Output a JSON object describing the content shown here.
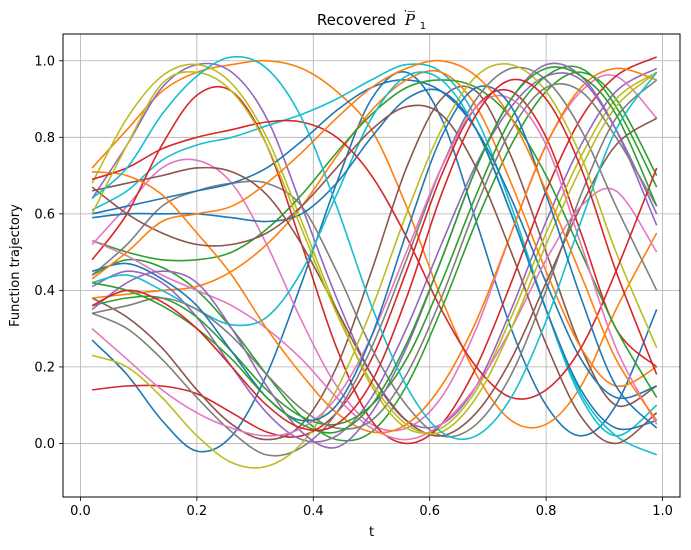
{
  "chart_data": {
    "type": "line",
    "title": "Recovered",
    "title_math": "P̅",
    "title_subscript": "1",
    "xlabel": "t",
    "ylabel": "Function trajectory",
    "xlim": [
      -0.03,
      1.03
    ],
    "ylim": [
      -0.14,
      1.07
    ],
    "x_ticks": [
      0.0,
      0.2,
      0.4,
      0.6,
      0.8,
      1.0
    ],
    "x_tick_labels": [
      "0.0",
      "0.2",
      "0.4",
      "0.6",
      "0.8",
      "1.0"
    ],
    "y_ticks": [
      0.0,
      0.2,
      0.4,
      0.6,
      0.8,
      1.0
    ],
    "y_tick_labels": [
      "0.0",
      "0.2",
      "0.4",
      "0.6",
      "0.8",
      "1.0"
    ],
    "grid": true,
    "x": [
      0.02,
      0.08,
      0.14,
      0.2,
      0.26,
      0.32,
      0.38,
      0.44,
      0.5,
      0.56,
      0.62,
      0.68,
      0.74,
      0.8,
      0.86,
      0.92,
      0.99
    ],
    "series": [
      {
        "color": "#1f77b4",
        "values": [
          0.27,
          0.18,
          0.06,
          -0.02,
          0.02,
          0.18,
          0.42,
          0.68,
          0.9,
          0.97,
          0.85,
          0.58,
          0.3,
          0.1,
          0.02,
          0.1,
          0.35
        ]
      },
      {
        "color": "#ff7f0e",
        "values": [
          0.72,
          0.82,
          0.92,
          0.97,
          0.99,
          1.0,
          0.98,
          0.92,
          0.82,
          0.62,
          0.38,
          0.18,
          0.06,
          0.05,
          0.15,
          0.35,
          0.55
        ]
      },
      {
        "color": "#2ca02c",
        "values": [
          0.44,
          0.48,
          0.46,
          0.4,
          0.3,
          0.18,
          0.07,
          0.01,
          0.03,
          0.15,
          0.35,
          0.58,
          0.78,
          0.92,
          0.97,
          0.9,
          0.7
        ]
      },
      {
        "color": "#d62728",
        "values": [
          0.14,
          0.15,
          0.15,
          0.13,
          0.08,
          0.03,
          0.02,
          0.08,
          0.22,
          0.45,
          0.7,
          0.88,
          0.92,
          0.8,
          0.55,
          0.3,
          0.2
        ]
      },
      {
        "color": "#9467bd",
        "values": [
          0.64,
          0.78,
          0.93,
          0.99,
          0.97,
          0.85,
          0.62,
          0.38,
          0.18,
          0.06,
          0.05,
          0.15,
          0.35,
          0.58,
          0.78,
          0.92,
          0.98
        ]
      },
      {
        "color": "#8c564b",
        "values": [
          0.38,
          0.33,
          0.25,
          0.14,
          0.05,
          0.01,
          0.05,
          0.2,
          0.45,
          0.72,
          0.9,
          0.92,
          0.75,
          0.5,
          0.25,
          0.1,
          0.15
        ]
      },
      {
        "color": "#e377c2",
        "values": [
          0.52,
          0.62,
          0.72,
          0.74,
          0.68,
          0.52,
          0.32,
          0.15,
          0.05,
          0.04,
          0.12,
          0.3,
          0.55,
          0.78,
          0.92,
          0.96,
          0.85
        ]
      },
      {
        "color": "#7f7f7f",
        "values": [
          0.44,
          0.52,
          0.62,
          0.66,
          0.68,
          0.68,
          0.62,
          0.45,
          0.25,
          0.1,
          0.02,
          0.05,
          0.18,
          0.4,
          0.65,
          0.85,
          0.95
        ]
      },
      {
        "color": "#bcbd22",
        "values": [
          0.68,
          0.85,
          0.96,
          0.99,
          0.94,
          0.8,
          0.58,
          0.35,
          0.15,
          0.04,
          0.04,
          0.14,
          0.33,
          0.55,
          0.75,
          0.9,
          0.97
        ]
      },
      {
        "color": "#17becf",
        "values": [
          0.61,
          0.66,
          0.74,
          0.78,
          0.8,
          0.83,
          0.86,
          0.9,
          0.95,
          0.99,
          0.97,
          0.85,
          0.62,
          0.35,
          0.12,
          0.02,
          0.1
        ]
      },
      {
        "color": "#1f77b4",
        "values": [
          0.6,
          0.62,
          0.64,
          0.66,
          0.68,
          0.72,
          0.79,
          0.87,
          0.93,
          0.95,
          0.92,
          0.82,
          0.64,
          0.42,
          0.22,
          0.12,
          0.15
        ]
      },
      {
        "color": "#ff7f0e",
        "values": [
          0.38,
          0.39,
          0.4,
          0.41,
          0.45,
          0.52,
          0.62,
          0.75,
          0.87,
          0.95,
          0.97,
          0.88,
          0.68,
          0.45,
          0.25,
          0.15,
          0.2
        ]
      },
      {
        "color": "#2ca02c",
        "values": [
          0.53,
          0.5,
          0.48,
          0.48,
          0.5,
          0.56,
          0.65,
          0.76,
          0.86,
          0.93,
          0.95,
          0.93,
          0.85,
          0.7,
          0.5,
          0.3,
          0.12
        ]
      },
      {
        "color": "#d62728",
        "values": [
          0.48,
          0.6,
          0.78,
          0.91,
          0.92,
          0.78,
          0.52,
          0.25,
          0.06,
          0.0,
          0.05,
          0.2,
          0.42,
          0.66,
          0.85,
          0.96,
          1.01
        ]
      },
      {
        "color": "#9467bd",
        "values": [
          0.41,
          0.45,
          0.42,
          0.33,
          0.2,
          0.08,
          0.01,
          0.02,
          0.12,
          0.3,
          0.52,
          0.73,
          0.88,
          0.96,
          0.95,
          0.82,
          0.6
        ]
      },
      {
        "color": "#8c564b",
        "values": [
          0.66,
          0.68,
          0.7,
          0.72,
          0.71,
          0.65,
          0.52,
          0.35,
          0.18,
          0.06,
          0.02,
          0.08,
          0.22,
          0.42,
          0.62,
          0.78,
          0.85
        ]
      },
      {
        "color": "#e377c2",
        "values": [
          0.53,
          0.49,
          0.44,
          0.4,
          0.36,
          0.3,
          0.22,
          0.12,
          0.04,
          0.01,
          0.05,
          0.15,
          0.3,
          0.48,
          0.62,
          0.66,
          0.5
        ]
      },
      {
        "color": "#7f7f7f",
        "values": [
          0.34,
          0.3,
          0.22,
          0.12,
          0.03,
          -0.03,
          -0.01,
          0.08,
          0.25,
          0.48,
          0.72,
          0.9,
          0.98,
          0.95,
          0.82,
          0.62,
          0.4
        ]
      },
      {
        "color": "#bcbd22",
        "values": [
          0.23,
          0.2,
          0.12,
          0.02,
          -0.05,
          -0.06,
          0.0,
          0.14,
          0.35,
          0.6,
          0.82,
          0.96,
          0.99,
          0.92,
          0.75,
          0.5,
          0.25
        ]
      },
      {
        "color": "#17becf",
        "values": [
          0.42,
          0.44,
          0.4,
          0.35,
          0.31,
          0.33,
          0.45,
          0.65,
          0.85,
          0.96,
          0.95,
          0.82,
          0.6,
          0.35,
          0.13,
          0.02,
          -0.03
        ]
      },
      {
        "color": "#1f77b4",
        "values": [
          0.59,
          0.6,
          0.6,
          0.6,
          0.59,
          0.58,
          0.6,
          0.68,
          0.8,
          0.9,
          0.92,
          0.82,
          0.6,
          0.35,
          0.14,
          0.04,
          0.06
        ]
      },
      {
        "color": "#ff7f0e",
        "values": [
          0.71,
          0.7,
          0.65,
          0.55,
          0.44,
          0.3,
          0.18,
          0.08,
          0.03,
          0.05,
          0.15,
          0.32,
          0.55,
          0.78,
          0.93,
          0.98,
          0.95
        ]
      },
      {
        "color": "#2ca02c",
        "values": [
          0.36,
          0.38,
          0.38,
          0.33,
          0.24,
          0.14,
          0.07,
          0.05,
          0.1,
          0.22,
          0.42,
          0.65,
          0.85,
          0.96,
          0.98,
          0.88,
          0.67
        ]
      },
      {
        "color": "#d62728",
        "values": [
          0.69,
          0.72,
          0.77,
          0.8,
          0.82,
          0.84,
          0.84,
          0.8,
          0.7,
          0.54,
          0.35,
          0.2,
          0.12,
          0.14,
          0.25,
          0.45,
          0.72
        ]
      },
      {
        "color": "#9467bd",
        "values": [
          0.35,
          0.42,
          0.45,
          0.42,
          0.3,
          0.15,
          0.03,
          -0.01,
          0.08,
          0.25,
          0.48,
          0.72,
          0.9,
          0.99,
          0.96,
          0.82,
          0.57
        ]
      },
      {
        "color": "#8c564b",
        "values": [
          0.67,
          0.6,
          0.55,
          0.52,
          0.52,
          0.55,
          0.62,
          0.72,
          0.82,
          0.88,
          0.86,
          0.72,
          0.5,
          0.26,
          0.07,
          0.0,
          0.08
        ]
      },
      {
        "color": "#e377c2",
        "values": [
          0.3,
          0.22,
          0.14,
          0.08,
          0.04,
          0.02,
          0.04,
          0.12,
          0.28,
          0.5,
          0.72,
          0.88,
          0.9,
          0.78,
          0.52,
          0.25,
          0.05
        ]
      },
      {
        "color": "#7f7f7f",
        "values": [
          0.34,
          0.36,
          0.38,
          0.35,
          0.28,
          0.18,
          0.09,
          0.04,
          0.06,
          0.18,
          0.38,
          0.62,
          0.82,
          0.93,
          0.92,
          0.8,
          0.62
        ]
      },
      {
        "color": "#bcbd22",
        "values": [
          0.6,
          0.78,
          0.94,
          0.97,
          0.92,
          0.78,
          0.56,
          0.34,
          0.16,
          0.05,
          0.03,
          0.12,
          0.3,
          0.52,
          0.72,
          0.88,
          0.97
        ]
      },
      {
        "color": "#17becf",
        "values": [
          0.64,
          0.72,
          0.86,
          0.96,
          1.01,
          0.98,
          0.85,
          0.62,
          0.36,
          0.15,
          0.03,
          0.02,
          0.12,
          0.32,
          0.58,
          0.82,
          0.97
        ]
      },
      {
        "color": "#1f77b4",
        "values": [
          0.45,
          0.47,
          0.43,
          0.36,
          0.24,
          0.12,
          0.06,
          0.1,
          0.28,
          0.55,
          0.8,
          0.93,
          0.88,
          0.65,
          0.38,
          0.15,
          0.04
        ]
      },
      {
        "color": "#ff7f0e",
        "values": [
          0.43,
          0.5,
          0.58,
          0.6,
          0.62,
          0.68,
          0.76,
          0.85,
          0.93,
          0.98,
          1.0,
          0.96,
          0.85,
          0.66,
          0.44,
          0.22,
          0.06
        ]
      },
      {
        "color": "#2ca02c",
        "values": [
          0.42,
          0.4,
          0.36,
          0.3,
          0.22,
          0.12,
          0.05,
          0.03,
          0.1,
          0.26,
          0.48,
          0.72,
          0.9,
          0.98,
          0.96,
          0.86,
          0.62
        ]
      },
      {
        "color": "#d62728",
        "values": [
          0.36,
          0.4,
          0.37,
          0.3,
          0.2,
          0.1,
          0.04,
          0.05,
          0.16,
          0.38,
          0.65,
          0.86,
          0.95,
          0.9,
          0.72,
          0.45,
          0.18
        ]
      }
    ]
  }
}
